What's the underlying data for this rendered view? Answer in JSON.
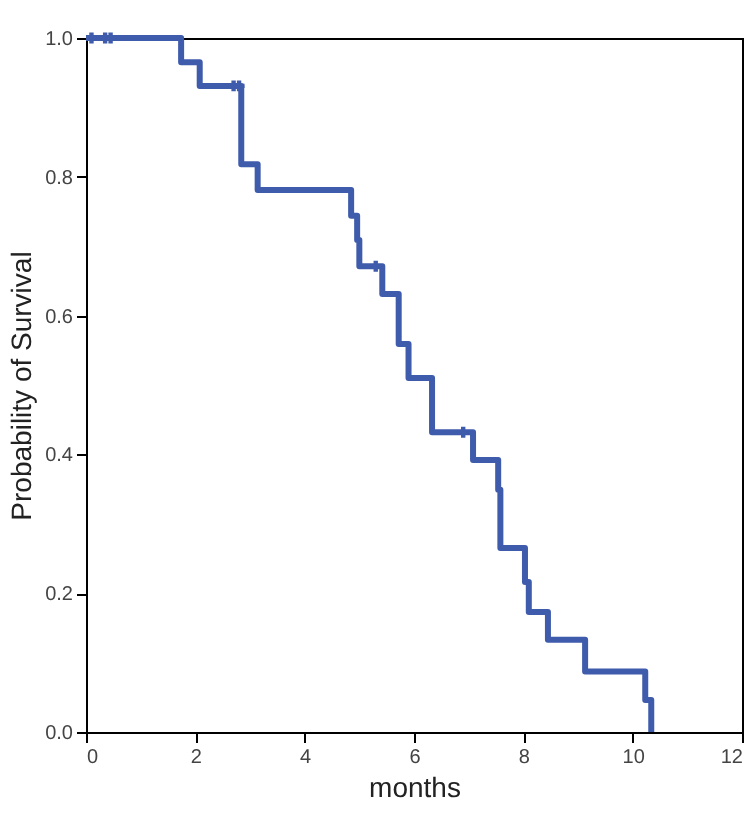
{
  "chart_data": {
    "type": "step",
    "xlabel": "months",
    "ylabel": "Probability of Survival",
    "series": [
      {
        "type": "step",
        "color": "#3f5bab",
        "line_style": "solid",
        "x": [
          0,
          1.74,
          2.08,
          2.84,
          3.14,
          4.85,
          4.96,
          5.0,
          5.42,
          5.72,
          5.9,
          6.33,
          7.08,
          7.54,
          7.58,
          8.03,
          8.1,
          8.45,
          9.13,
          10.23,
          10.34
        ],
        "values": [
          1.0,
          0.965,
          0.931,
          0.818,
          0.781,
          0.744,
          0.709,
          0.671,
          0.631,
          0.559,
          0.51,
          0.432,
          0.392,
          0.349,
          0.265,
          0.216,
          0.173,
          0.133,
          0.087,
          0.046,
          0.0
        ]
      },
      {
        "type": "scatter",
        "color": "#3f5bab",
        "marker": "cross",
        "x": [
          0.1,
          0.35,
          0.45,
          2.7,
          2.8,
          5.3,
          6.9
        ],
        "values": [
          1.0,
          1.0,
          1.0,
          0.931,
          0.931,
          0.671,
          0.432
        ]
      }
    ],
    "xlim": [
      0,
      12
    ],
    "xticks": [
      0,
      2,
      4,
      6,
      8,
      10,
      12
    ],
    "ylim": [
      0,
      1.0
    ],
    "yticks": [
      {
        "value": 0,
        "label": "0.0"
      },
      {
        "value": 0.2,
        "label": "0.2"
      },
      {
        "value": 0.4,
        "label": "0.4"
      },
      {
        "value": 0.6,
        "label": "0.6"
      },
      {
        "value": 0.8,
        "label": "0.8"
      },
      {
        "value": 1.0,
        "label": "1.0"
      }
    ],
    "grid": false
  }
}
